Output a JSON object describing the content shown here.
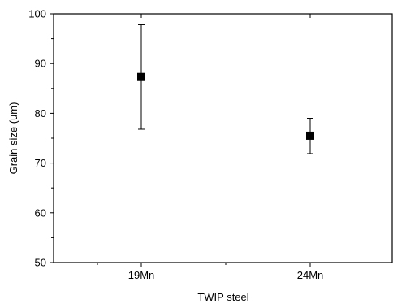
{
  "chart_data": {
    "type": "scatter",
    "categories": [
      "19Mn",
      "24Mn"
    ],
    "series": [
      {
        "values": [
          87.3,
          75.5
        ],
        "error_low": [
          76.8,
          71.9
        ],
        "error_high": [
          97.8,
          79.0
        ]
      }
    ],
    "xlabel": "TWIP steel",
    "ylabel": "Grain size (um)",
    "ylim": [
      50,
      100
    ],
    "yticks": [
      "50",
      "60",
      "70",
      "80",
      "90",
      "100"
    ],
    "grid": false,
    "marker": "square",
    "colors": {
      "marker": "#000000",
      "axis": "#000000"
    }
  }
}
